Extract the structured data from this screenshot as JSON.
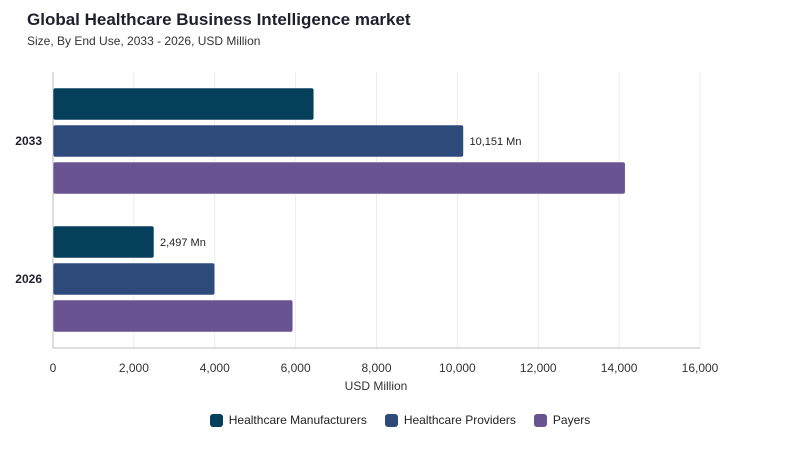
{
  "header": {
    "title": "Global Healthcare Business Intelligence market",
    "subtitle": "Size, By End Use, 2033 - 2026, USD Million"
  },
  "chart_data": {
    "type": "bar",
    "orientation": "horizontal",
    "categories": [
      "2033",
      "2026"
    ],
    "series": [
      {
        "name": "Healthcare Manufacturers",
        "color": "#053f5c",
        "values": [
          6450,
          2497
        ]
      },
      {
        "name": "Healthcare Providers",
        "color": "#2e4a7b",
        "values": [
          10151,
          4000
        ]
      },
      {
        "name": "Payers",
        "color": "#6a5391",
        "values": [
          14150,
          5930
        ]
      }
    ],
    "data_labels": [
      {
        "category": "2033",
        "series": "Healthcare Providers",
        "text": "10,151 Mn"
      },
      {
        "category": "2026",
        "series": "Healthcare Manufacturers",
        "text": "2,497 Mn"
      }
    ],
    "xlabel": "USD Million",
    "ylabel": "",
    "xlim": [
      0,
      16000
    ],
    "xticks": [
      0,
      2000,
      4000,
      6000,
      8000,
      10000,
      12000,
      14000,
      16000
    ],
    "xtick_labels": [
      "0",
      "2,000",
      "4,000",
      "6,000",
      "8,000",
      "10,000",
      "12,000",
      "14,000",
      "16,000"
    ],
    "grid": true,
    "legend_position": "bottom"
  }
}
